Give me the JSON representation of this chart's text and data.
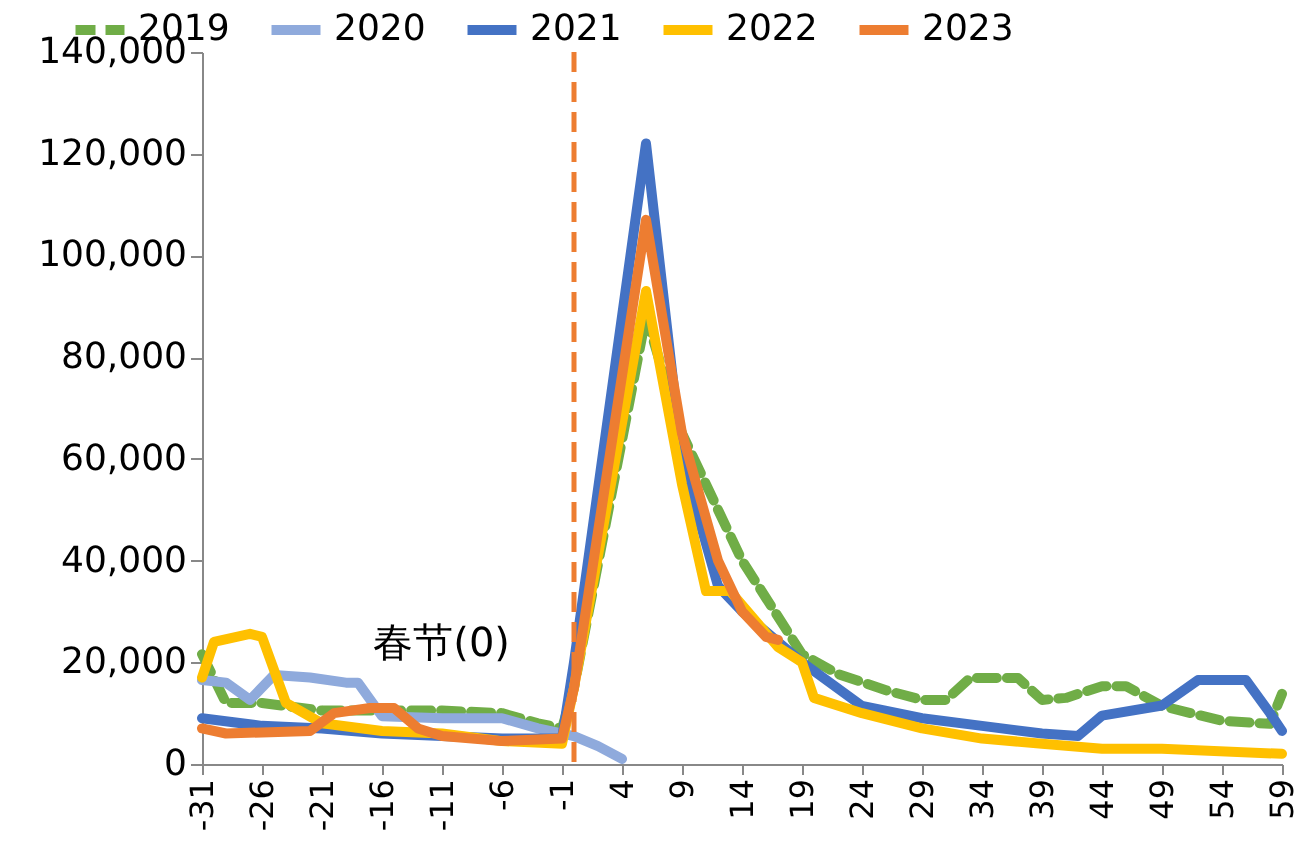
{
  "chart_data": {
    "type": "line",
    "series": [
      {
        "name": "2019",
        "color": "#70ad47",
        "line_style": "dashed",
        "x": [
          -31,
          -29,
          -26,
          -21,
          -16,
          -11,
          -6,
          -3,
          -1,
          0,
          6,
          9,
          14,
          19,
          22,
          26,
          29,
          31,
          33,
          37,
          39,
          41,
          44,
          46,
          49,
          54,
          58,
          59
        ],
        "values": [
          21600,
          12000,
          12000,
          10500,
          10500,
          10500,
          10000,
          8000,
          7000,
          15000,
          88000,
          65000,
          40000,
          21600,
          17700,
          14500,
          12600,
          12600,
          16900,
          16900,
          12600,
          13000,
          15300,
          15300,
          11400,
          8500,
          7900,
          13800
        ]
      },
      {
        "name": "2020",
        "color": "#8faadc",
        "x": [
          -31,
          -29,
          -27,
          -25,
          -22,
          -19,
          -18,
          -16,
          -11,
          -6,
          -3,
          0,
          2,
          4
        ],
        "values": [
          16500,
          16000,
          12600,
          17500,
          17000,
          16000,
          16000,
          9400,
          9000,
          9000,
          7000,
          5500,
          3500,
          1000
        ]
      },
      {
        "name": "2021",
        "color": "#4472c4",
        "x": [
          -31,
          -26,
          -21,
          -16,
          -11,
          -6,
          -1,
          0,
          6,
          9,
          12,
          14,
          19,
          24,
          29,
          34,
          39,
          42,
          44,
          49,
          52,
          56,
          58,
          59
        ],
        "values": [
          9000,
          7500,
          7000,
          6000,
          5500,
          5000,
          5000,
          20000,
          122000,
          60000,
          35000,
          30000,
          20000,
          11400,
          9000,
          7500,
          6000,
          5500,
          9500,
          11500,
          16500,
          16500,
          10000,
          6500
        ]
      },
      {
        "name": "2022",
        "color": "#ffc000",
        "x": [
          -31,
          -30,
          -27,
          -26,
          -24,
          -21,
          -16,
          -11,
          -6,
          -1,
          0,
          6,
          9,
          11,
          13,
          17,
          19,
          20,
          24,
          29,
          34,
          39,
          44,
          49,
          59
        ],
        "values": [
          17000,
          24000,
          25600,
          25000,
          12000,
          8000,
          6500,
          6000,
          4500,
          4000,
          15000,
          93000,
          55000,
          34000,
          34000,
          23000,
          20000,
          13000,
          10000,
          7000,
          5000,
          4000,
          3000,
          3000,
          2000
        ]
      },
      {
        "name": "2023",
        "color": "#ed7d31",
        "x": [
          -31,
          -29,
          -22,
          -20,
          -17,
          -15,
          -13,
          -11,
          -6,
          -1,
          0,
          6,
          9,
          12,
          14,
          16,
          17
        ],
        "values": [
          7000,
          6000,
          6500,
          10000,
          11000,
          11000,
          7000,
          5500,
          4500,
          5000,
          15000,
          107000,
          65000,
          40000,
          30000,
          25000,
          24400
        ]
      }
    ],
    "xlim": [
      -31,
      59
    ],
    "xticks": [
      -31,
      -26,
      -21,
      -16,
      -11,
      -6,
      -1,
      4,
      9,
      14,
      19,
      24,
      29,
      34,
      39,
      44,
      49,
      54,
      59
    ],
    "ylim": [
      0,
      140000
    ],
    "yticks": [
      0,
      {
        "value": 20000,
        "label": "20,000"
      },
      {
        "value": 40000,
        "label": "40,000"
      },
      {
        "value": 60000,
        "label": "60,000"
      },
      {
        "value": 80000,
        "label": "80,000"
      },
      {
        "value": 100000,
        "label": "100,000"
      },
      {
        "value": 120000,
        "label": "120,000"
      },
      {
        "value": 140000,
        "label": "140,000"
      }
    ],
    "ref_lines": [
      {
        "axis": "x",
        "value": 0,
        "label": "春节(0)",
        "color": "#ed7d31",
        "line_style": "dashed"
      }
    ],
    "grid": false,
    "legend": "top"
  }
}
